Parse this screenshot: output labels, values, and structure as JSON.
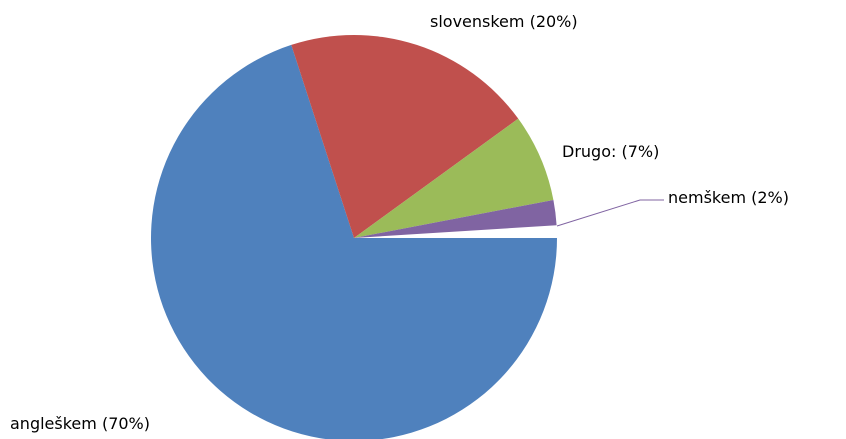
{
  "chart_data": {
    "type": "pie",
    "categories": [
      "angleškem",
      "slovenskem",
      "Drugo:",
      "nemškem"
    ],
    "values": [
      70,
      20,
      7,
      2
    ],
    "value_labels": [
      "(70%)",
      "(20%)",
      "(7%)",
      "(2%)"
    ],
    "colors": [
      "#4f81bd",
      "#c0504d",
      "#9bbb59",
      "#8064a2"
    ]
  }
}
